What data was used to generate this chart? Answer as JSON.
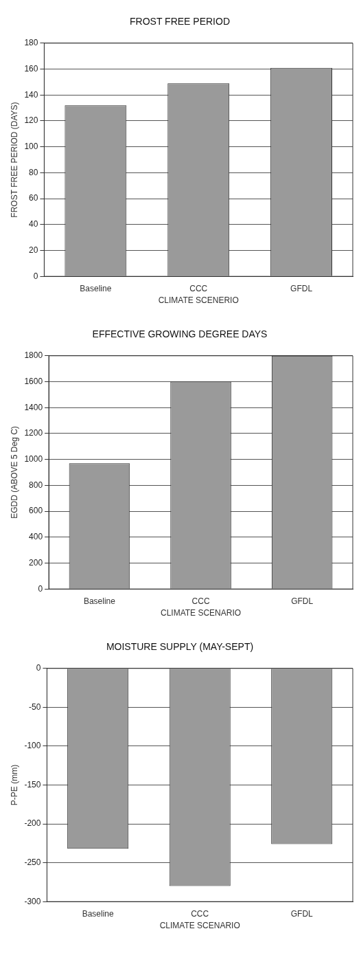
{
  "chart_data": [
    {
      "type": "bar",
      "title": "FROST FREE PERIOD",
      "xlabel": "CLIMATE SCENERIO",
      "ylabel": "FROST FREE PERIOD (DAYS)",
      "categories": [
        "Baseline",
        "CCC",
        "GFDL"
      ],
      "values": [
        132,
        149,
        161
      ],
      "color": "#9a9a9a",
      "ylim": [
        0,
        180
      ],
      "yticks": [
        0,
        20,
        40,
        60,
        80,
        100,
        120,
        140,
        160,
        180
      ],
      "grid": "y"
    },
    {
      "type": "bar",
      "title": "EFFECTIVE GROWING DEGREE DAYS",
      "xlabel": "CLIMATE SCENARIO",
      "ylabel": "EGDD (ABOVE 5 Deg C)",
      "categories": [
        "Baseline",
        "CCC",
        "GFDL"
      ],
      "values": [
        970,
        1600,
        1800
      ],
      "color": "#9a9a9a",
      "ylim": [
        0,
        1800
      ],
      "yticks": [
        0,
        200,
        400,
        600,
        800,
        1000,
        1200,
        1400,
        1600,
        1800
      ],
      "grid": "y"
    },
    {
      "type": "bar",
      "title": "MOISTURE SUPPLY (MAY-SEPT)",
      "xlabel": "CLIMATE SCENARIO",
      "ylabel": "P-PE (mm)",
      "categories": [
        "Baseline",
        "CCC",
        "GFDL"
      ],
      "values": [
        -232,
        -280,
        -226
      ],
      "color": "#9a9a9a",
      "ylim": [
        -300,
        0
      ],
      "yticks": [
        -300,
        -250,
        -200,
        -150,
        -100,
        -50,
        0
      ],
      "grid": "y"
    }
  ]
}
